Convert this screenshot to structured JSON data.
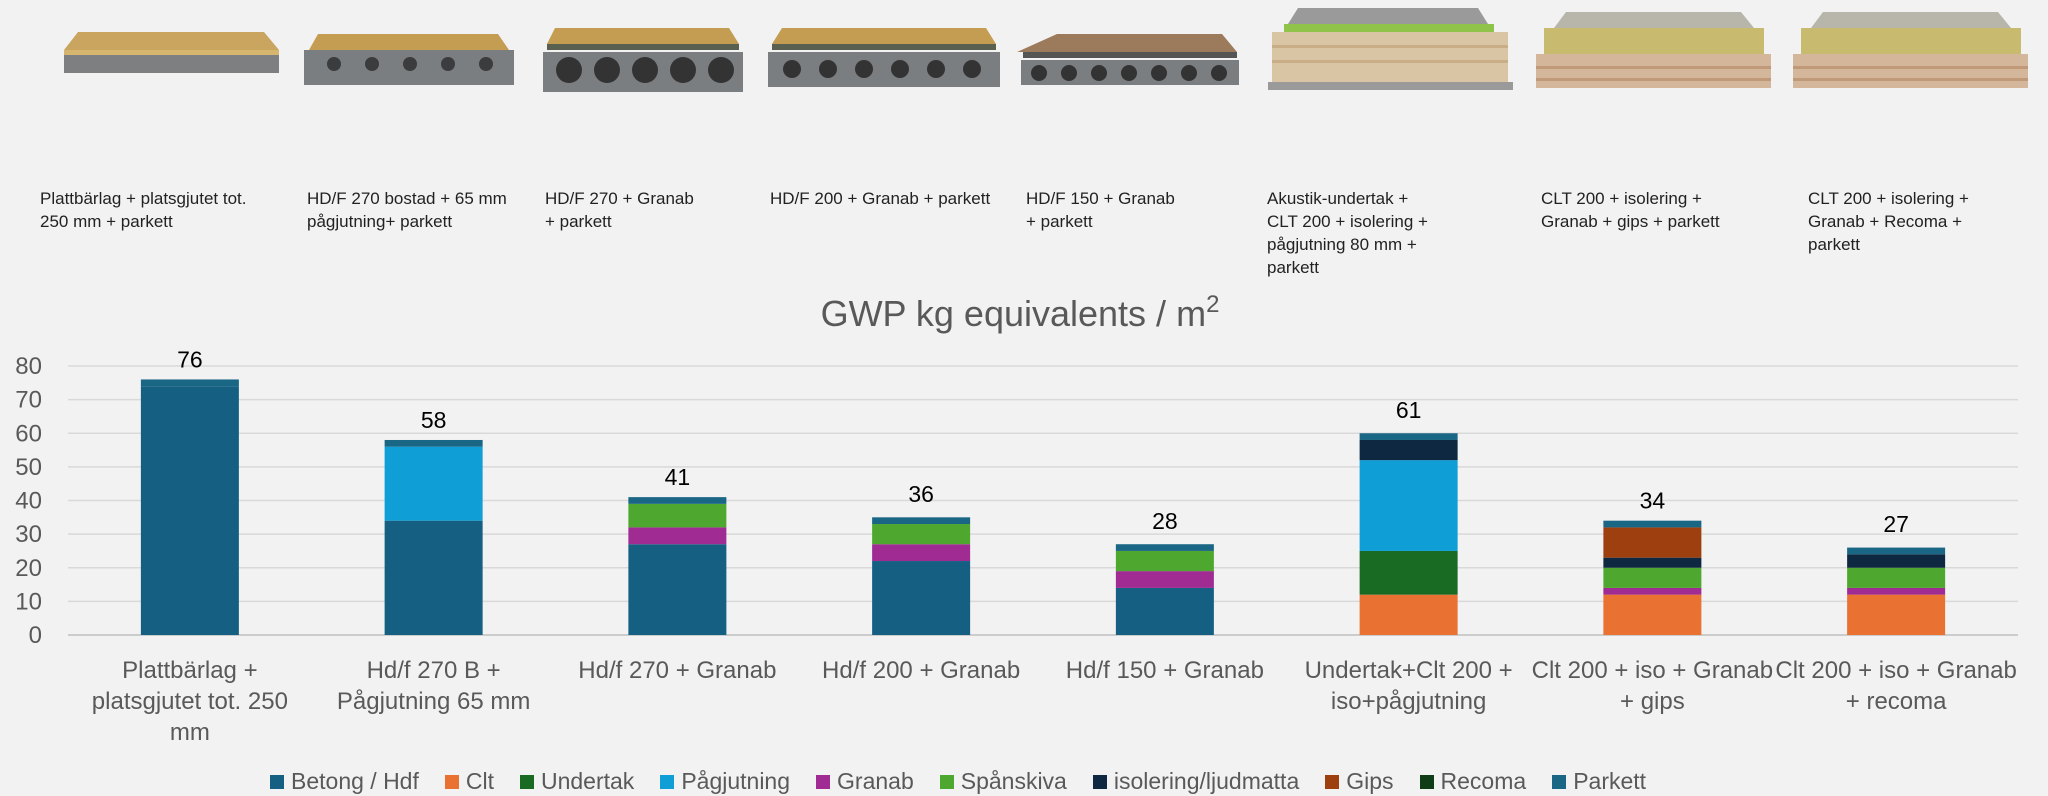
{
  "thumbnails": [
    {
      "caption": "Plattbärlag + platsgjutet tot.\n250 mm + parkett"
    },
    {
      "caption": "HD/F 270 bostad + 65 mm\npågjutning+ parkett"
    },
    {
      "caption": "HD/F 270 + Granab\n+ parkett"
    },
    {
      "caption": "HD/F 200 + Granab + parkett"
    },
    {
      "caption": "HD/F 150 + Granab\n+ parkett"
    },
    {
      "caption": "Akustik-undertak +\nCLT 200 + isolering +\npågjutning 80 mm +\nparkett"
    },
    {
      "caption": "CLT 200 + isolering +\nGranab + gips + parkett"
    },
    {
      "caption": "CLT 200 + isolering +\nGranab + Recoma +\nparkett"
    }
  ],
  "chart_data": {
    "type": "bar",
    "stacked": true,
    "title": "GWP kg equivalents / m²",
    "ylim": [
      0,
      80
    ],
    "yticks": [
      0,
      10,
      20,
      30,
      40,
      50,
      60,
      70,
      80
    ],
    "grid": true,
    "legend_position": "bottom",
    "categories": [
      "Plattbärlag +\nplatsgjutet tot. 250\nmm",
      "Hd/f 270 B +\nPågjutning 65 mm",
      "Hd/f 270 + Granab",
      "Hd/f 200 + Granab",
      "Hd/f 150 + Granab",
      "Undertak+Clt 200 +\niso+pågjutning",
      "Clt 200 + iso + Granab\n+ gips",
      "Clt 200 + iso + Granab\n+ recoma"
    ],
    "totals": [
      76,
      58,
      41,
      36,
      28,
      61,
      34,
      27
    ],
    "series": [
      {
        "name": "Betong / Hdf",
        "color": "#156082",
        "values": [
          74,
          34,
          27,
          22,
          14,
          0,
          0,
          0
        ]
      },
      {
        "name": "Clt",
        "color": "#e97132",
        "values": [
          0,
          0,
          0,
          0,
          0,
          12,
          12,
          12
        ]
      },
      {
        "name": "Undertak",
        "color": "#196b24",
        "values": [
          0,
          0,
          0,
          0,
          0,
          13,
          0,
          0
        ]
      },
      {
        "name": "Pågjutning",
        "color": "#0f9ed5",
        "values": [
          0,
          22,
          0,
          0,
          0,
          27,
          0,
          0
        ]
      },
      {
        "name": "Granab",
        "color": "#a02b93",
        "values": [
          0,
          0,
          5,
          5,
          5,
          0,
          2,
          2
        ]
      },
      {
        "name": "Spånskiva",
        "color": "#4ea72e",
        "values": [
          0,
          0,
          7,
          6,
          6,
          0,
          6,
          6
        ]
      },
      {
        "name": "isolering/ljudmatta",
        "color": "#0e2841",
        "values": [
          0,
          0,
          0,
          0,
          0,
          6,
          3,
          4
        ]
      },
      {
        "name": "Gips",
        "color": "#9e3f10",
        "values": [
          0,
          0,
          0,
          0,
          0,
          0,
          9,
          0
        ]
      },
      {
        "name": "Recoma",
        "color": "#0f3d16",
        "values": [
          0,
          0,
          0,
          0,
          0,
          0,
          0,
          0
        ]
      },
      {
        "name": "Parkett",
        "color": "#1a6685",
        "values": [
          2,
          2,
          2,
          2,
          2,
          2,
          2,
          2
        ]
      }
    ]
  }
}
